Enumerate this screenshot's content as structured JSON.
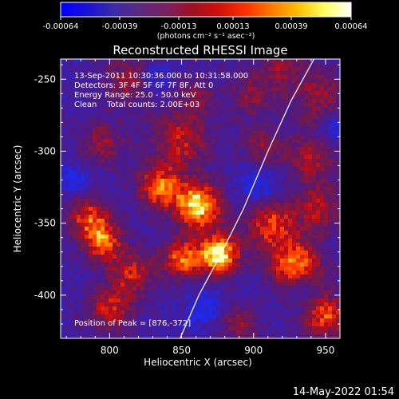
{
  "colorbar": {
    "ticks": [
      "-0.00064",
      "-0.00039",
      "-0.00013",
      "0.00013",
      "0.00039",
      "0.00064"
    ],
    "units_label": "(photons cm⁻² s⁻¹ asec⁻²)",
    "colors": [
      "#0000ff",
      "#1a10d8",
      "#3c2aa8",
      "#5a2a80",
      "#7a2060",
      "#a01020",
      "#d01008",
      "#ff3000",
      "#ff7a00",
      "#ffc000",
      "#ffff60",
      "#ffffff"
    ]
  },
  "annotations": {
    "time_range": "13-Sep-2011 10:30:36.000 to 10:31:58.000",
    "detectors": "Detectors: 3F 4F 5F 6F 7F 8F, Att 0",
    "energy_range": "Energy Range: 25.0 - 50.0 keV",
    "clean_counts": "Clean    Total counts: 2.00E+03",
    "peak_position": "Position of Peak = [876,-372]"
  },
  "footer_date": "14-May-2022 01:54",
  "chart_data": {
    "type": "heatmap",
    "title": "Reconstructed RHESSI Image",
    "xlabel": "Heliocentric X (arcsec)",
    "ylabel": "Heliocentric Y (arcsec)",
    "xlim": [
      766,
      960
    ],
    "ylim": [
      -430,
      -236
    ],
    "x_ticks": [
      800,
      850,
      900,
      950
    ],
    "y_ticks": [
      -250,
      -300,
      -350,
      -400
    ],
    "value_range": [
      -0.00064,
      0.00064
    ],
    "peak": [
      876,
      -372
    ],
    "limb_curve": [
      [
        849,
        -430
      ],
      [
        862,
        -400
      ],
      [
        877,
        -372
      ],
      [
        893,
        -340
      ],
      [
        910,
        -300
      ],
      [
        926,
        -265
      ],
      [
        942,
        -236
      ]
    ]
  }
}
